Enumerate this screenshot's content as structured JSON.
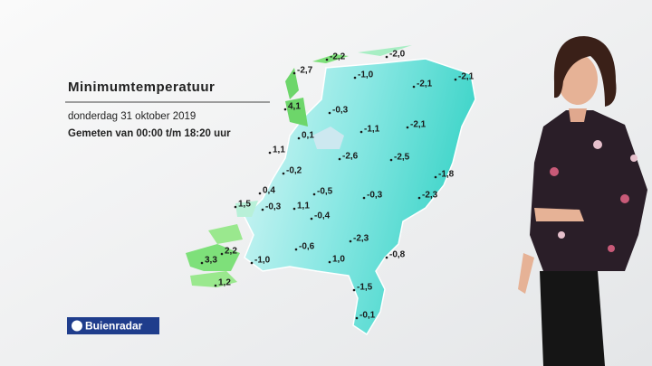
{
  "header": {
    "title": "Minimumtemperatuur",
    "date": "donderdag 31 oktober 2019",
    "period": "Gemeten van 00:00 t/m 18:20 uur"
  },
  "logo": {
    "text": "Buienradar"
  },
  "stations": [
    {
      "label": "-2,2"
    },
    {
      "label": "-2,0"
    },
    {
      "label": "-2,7"
    },
    {
      "label": "-1,0"
    },
    {
      "label": "-2,1"
    },
    {
      "label": "-2,1"
    },
    {
      "label": "4,1"
    },
    {
      "label": "-0,3"
    },
    {
      "label": "0,1"
    },
    {
      "label": "-1,1"
    },
    {
      "label": "-2,1"
    },
    {
      "label": "1,1"
    },
    {
      "label": "-2,6"
    },
    {
      "label": "-2,5"
    },
    {
      "label": "-0,2"
    },
    {
      "label": "-1,8"
    },
    {
      "label": "0,4"
    },
    {
      "label": "-0,5"
    },
    {
      "label": "-0,3"
    },
    {
      "label": "-2,3"
    },
    {
      "label": "1,5"
    },
    {
      "label": "-0,3"
    },
    {
      "label": "1,1"
    },
    {
      "label": "-0,4"
    },
    {
      "label": "-2,3"
    },
    {
      "label": "-0,6"
    },
    {
      "label": "2,2"
    },
    {
      "label": "3,3"
    },
    {
      "label": "-1,0"
    },
    {
      "label": "1,0"
    },
    {
      "label": "-0,8"
    },
    {
      "label": "1,2"
    },
    {
      "label": "-1,5"
    },
    {
      "label": "-0,1"
    }
  ]
}
